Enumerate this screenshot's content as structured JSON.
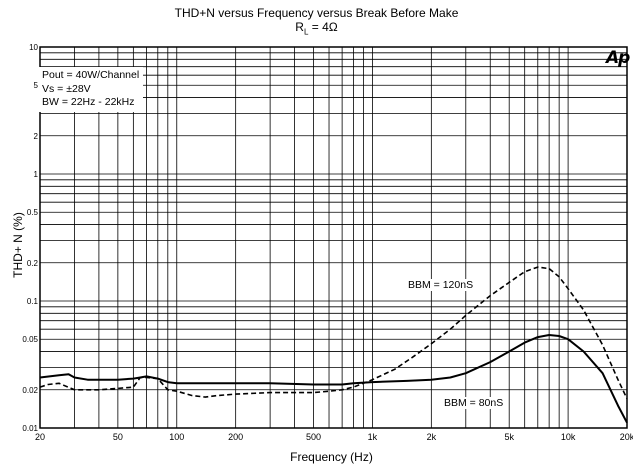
{
  "chart_data": {
    "type": "line",
    "title": "THD+N versus Frequency versus Break Before Make",
    "subtitle_main": "R",
    "subtitle_sub": "L",
    "subtitle_rest": " = 4Ω",
    "xlabel": "Frequency (Hz)",
    "ylabel": "THD+ N (%)",
    "xscale": "log",
    "yscale": "log",
    "xlim": [
      20,
      20000
    ],
    "ylim": [
      0.01,
      10
    ],
    "x_ticks": [
      20,
      50,
      100,
      200,
      500,
      1000,
      2000,
      5000,
      10000,
      20000
    ],
    "x_tick_labels": [
      "20",
      "50",
      "100",
      "200",
      "500",
      "1k",
      "2k",
      "5k",
      "10k",
      "20k"
    ],
    "y_ticks": [
      0.01,
      0.02,
      0.05,
      0.1,
      0.2,
      0.5,
      1,
      2,
      5,
      10
    ],
    "y_tick_labels": [
      "0.01",
      "0.02",
      "0.05",
      "0.1",
      "0.2",
      "0.5",
      "1",
      "2",
      "5",
      "10"
    ],
    "grid": true,
    "legend_lines": [
      "Pout = 40W/Channel",
      "Vs = ±28V",
      "BW = 22Hz - 22kHz"
    ],
    "series": [
      {
        "name": "BBM = 120nS",
        "style": "dashed",
        "points": [
          [
            20,
            0.021
          ],
          [
            22,
            0.022
          ],
          [
            25,
            0.0225
          ],
          [
            30,
            0.02
          ],
          [
            40,
            0.02
          ],
          [
            50,
            0.0205
          ],
          [
            60,
            0.021
          ],
          [
            65,
            0.025
          ],
          [
            70,
            0.025
          ],
          [
            80,
            0.0245
          ],
          [
            90,
            0.02
          ],
          [
            100,
            0.0195
          ],
          [
            120,
            0.018
          ],
          [
            140,
            0.0175
          ],
          [
            160,
            0.018
          ],
          [
            200,
            0.0185
          ],
          [
            300,
            0.019
          ],
          [
            500,
            0.019
          ],
          [
            600,
            0.0195
          ],
          [
            700,
            0.02
          ],
          [
            800,
            0.021
          ],
          [
            1000,
            0.024
          ],
          [
            1300,
            0.029
          ],
          [
            1600,
            0.036
          ],
          [
            2000,
            0.046
          ],
          [
            2500,
            0.06
          ],
          [
            3000,
            0.077
          ],
          [
            4000,
            0.11
          ],
          [
            5000,
            0.14
          ],
          [
            6000,
            0.17
          ],
          [
            7000,
            0.185
          ],
          [
            8000,
            0.18
          ],
          [
            9000,
            0.155
          ],
          [
            10000,
            0.125
          ],
          [
            12000,
            0.085
          ],
          [
            15000,
            0.045
          ],
          [
            18000,
            0.024
          ],
          [
            20000,
            0.017
          ]
        ]
      },
      {
        "name": "BBM = 80nS",
        "style": "solid",
        "points": [
          [
            20,
            0.025
          ],
          [
            25,
            0.026
          ],
          [
            28,
            0.0265
          ],
          [
            30,
            0.025
          ],
          [
            35,
            0.024
          ],
          [
            40,
            0.024
          ],
          [
            50,
            0.024
          ],
          [
            60,
            0.0245
          ],
          [
            65,
            0.025
          ],
          [
            70,
            0.0255
          ],
          [
            80,
            0.0245
          ],
          [
            90,
            0.023
          ],
          [
            100,
            0.0225
          ],
          [
            150,
            0.0225
          ],
          [
            200,
            0.0225
          ],
          [
            300,
            0.0225
          ],
          [
            500,
            0.022
          ],
          [
            700,
            0.022
          ],
          [
            800,
            0.0225
          ],
          [
            1000,
            0.023
          ],
          [
            1500,
            0.0235
          ],
          [
            2000,
            0.024
          ],
          [
            2500,
            0.025
          ],
          [
            3000,
            0.027
          ],
          [
            4000,
            0.033
          ],
          [
            5000,
            0.04
          ],
          [
            6000,
            0.047
          ],
          [
            7000,
            0.052
          ],
          [
            8000,
            0.054
          ],
          [
            9000,
            0.053
          ],
          [
            10000,
            0.05
          ],
          [
            12000,
            0.04
          ],
          [
            15000,
            0.027
          ],
          [
            18000,
            0.015
          ],
          [
            20000,
            0.011
          ]
        ]
      }
    ],
    "annotations": [
      "BBM = 120nS",
      "BBM = 80nS"
    ],
    "logo_text": "Ap"
  }
}
